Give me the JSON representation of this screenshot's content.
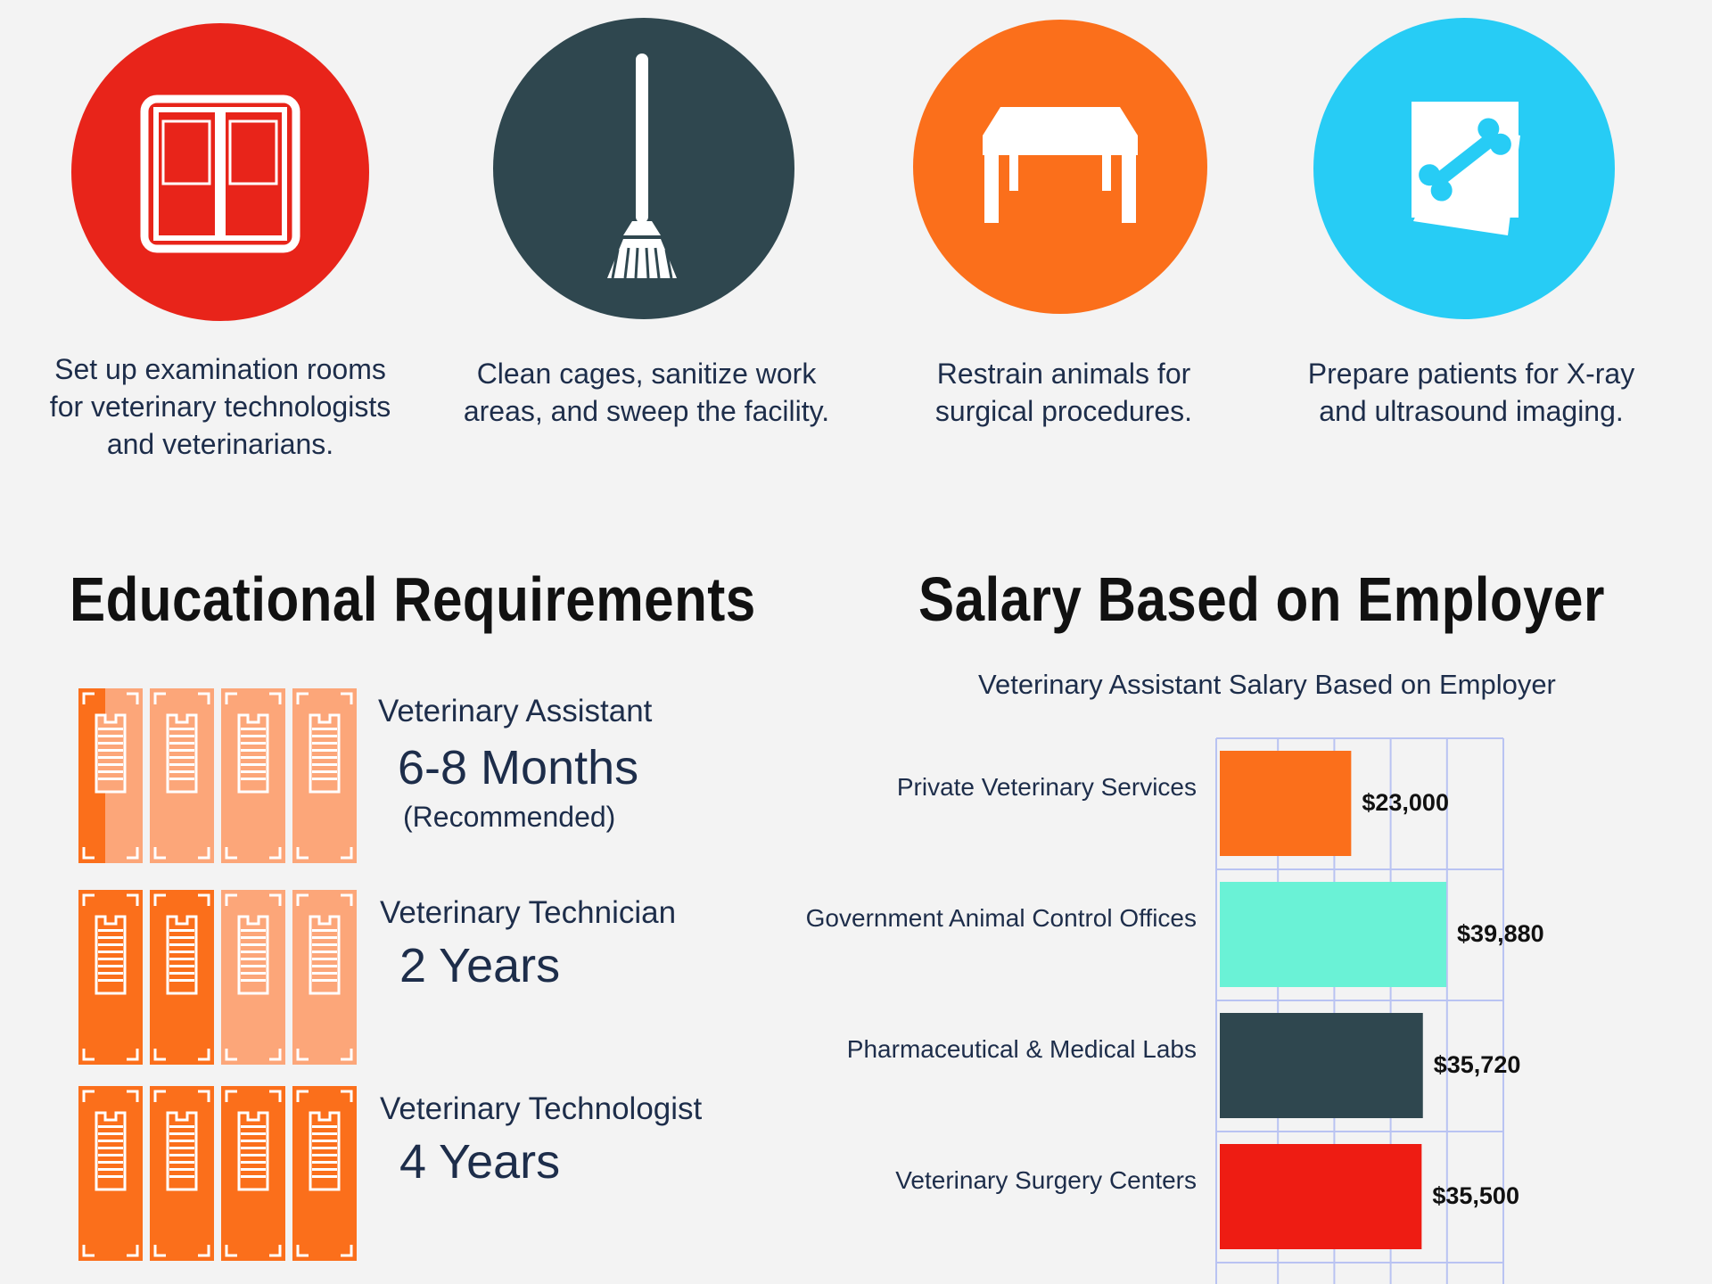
{
  "duties": [
    {
      "icon": "exam-room-door-icon",
      "color": "#e8241a",
      "text_lines": [
        "Set up examination rooms",
        "for veterinary technologists",
        "and veterinarians."
      ]
    },
    {
      "icon": "broom-icon",
      "color": "#2f474f",
      "text_lines": [
        "Clean cages, sanitize work",
        "areas, and sweep the facility."
      ]
    },
    {
      "icon": "table-icon",
      "color": "#fb6f1b",
      "text_lines": [
        "Restrain animals for",
        "surgical procedures."
      ]
    },
    {
      "icon": "xray-bone-icon",
      "color": "#27ccf5",
      "text_lines": [
        "Prepare patients for X-ray",
        "and ultrasound imaging."
      ]
    }
  ],
  "education": {
    "heading": "Educational Requirements",
    "rows": [
      {
        "label": "Veterinary Assistant",
        "duration": "6-8 Months",
        "note": "(Recommended)",
        "filled_books": 0.5
      },
      {
        "label": "Veterinary Technician",
        "duration": "2 Years",
        "note": "",
        "filled_books": 2
      },
      {
        "label": "Veterinary Technologist",
        "duration": "4 Years",
        "note": "",
        "filled_books": 4
      }
    ],
    "colors": {
      "filled": "#fb6f1b",
      "light": "#fca679"
    }
  },
  "salary": {
    "heading": "Salary Based on Employer"
  },
  "chart_data": {
    "type": "bar",
    "orientation": "horizontal",
    "title": "Veterinary Assistant Salary Based on Employer",
    "categories": [
      "Private Veterinary Services",
      "Government Animal Control Offices",
      "Pharmaceutical & Medical Labs",
      "Veterinary Surgery Centers"
    ],
    "values": [
      23000,
      39880,
      35720,
      35500
    ],
    "value_labels": [
      "$23,000",
      "$39,880",
      "$35,720",
      "$35,500"
    ],
    "colors": [
      "#fb6f1b",
      "#6af2d6",
      "#2f474f",
      "#ee1c13"
    ],
    "xlim": [
      0,
      50000
    ],
    "grid": true
  }
}
